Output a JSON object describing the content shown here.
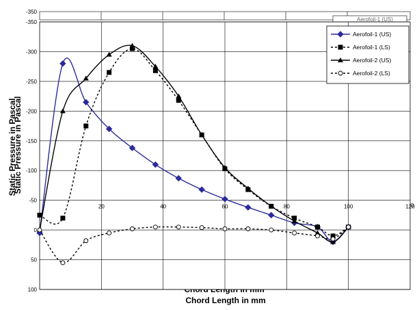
{
  "chart_data": {
    "type": "line",
    "xlabel": "Chord Length in mm",
    "ylabel": "Static Pressure in Pascal",
    "xlim": [
      0,
      120
    ],
    "ylim": [
      -350,
      100
    ],
    "y_inverted": true,
    "grid": true,
    "legend_position": "top-right",
    "x_ticks": [
      "20",
      "40",
      "60",
      "80",
      "100",
      "120"
    ],
    "y_ticks": [
      "-350",
      "-300",
      "-250",
      "-200",
      "-150",
      "-100",
      "-50",
      "0",
      "50",
      "100"
    ],
    "ghost_legend_label": "Aerofoil-1 (US)",
    "ghost_top_y_label": "-350",
    "ghost_tick_label": "0",
    "series": [
      {
        "name": "Aerofoil-1 (US)",
        "color": "#2b2b9a",
        "line_style": "solid",
        "marker": "diamond",
        "x": [
          0,
          7.5,
          15,
          22.5,
          30,
          37.5,
          45,
          52.5,
          60,
          67.5,
          75,
          82.5,
          90,
          95,
          100
        ],
        "y": [
          5,
          -280,
          -215,
          -170,
          -138,
          -110,
          -87,
          -68,
          -52,
          -38,
          -25,
          -12,
          -5,
          20,
          -5
        ]
      },
      {
        "name": "Aerofoil-1 (LS)",
        "color": "#000000",
        "line_style": "dotted",
        "marker": "square",
        "x": [
          0,
          7.5,
          15,
          22.5,
          30,
          37.5,
          45,
          52.5,
          60,
          67.5,
          75,
          82.5,
          90,
          95,
          100
        ],
        "y": [
          -25,
          -20,
          -175,
          -265,
          -305,
          -268,
          -218,
          -160,
          -103,
          -68,
          -40,
          -20,
          -5,
          10,
          -5
        ]
      },
      {
        "name": "Aerofoil-2 (US)",
        "color": "#000000",
        "line_style": "solid",
        "marker": "triangle",
        "x": [
          0,
          7.5,
          15,
          22.5,
          30,
          37.5,
          45,
          52.5,
          60,
          67.5,
          75,
          82.5,
          90,
          95,
          100
        ],
        "y": [
          0,
          -200,
          -255,
          -295,
          -310,
          -275,
          -225,
          -160,
          -105,
          -70,
          -40,
          -15,
          5,
          20,
          -5
        ]
      },
      {
        "name": "Aerofoil-2 (LS)",
        "color": "#000000",
        "line_style": "dotted",
        "marker": "circle",
        "x": [
          0,
          7.5,
          15,
          22.5,
          30,
          37.5,
          45,
          52.5,
          60,
          67.5,
          75,
          82.5,
          90,
          95,
          100
        ],
        "y": [
          0,
          55,
          18,
          5,
          -2,
          -5,
          -5,
          -4,
          -2,
          -2,
          0,
          5,
          10,
          15,
          -5
        ]
      }
    ]
  }
}
